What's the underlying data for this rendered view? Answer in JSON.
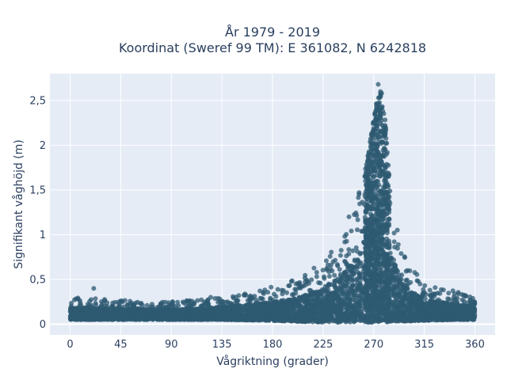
{
  "chart_data": {
    "type": "scatter",
    "title_line1": "År 1979 - 2019",
    "title_line2": "Koordinat (Sweref 99 TM): E 361082, N 6242818",
    "xlabel": "Vågriktning (grader)",
    "ylabel": "Signifikant våghöjd (m)",
    "xlim": [
      -18,
      378
    ],
    "ylim": [
      -0.12,
      2.8
    ],
    "x_ticks": [
      0,
      45,
      90,
      135,
      180,
      225,
      270,
      315,
      360
    ],
    "x_tick_labels": [
      "0",
      "45",
      "90",
      "135",
      "180",
      "225",
      "270",
      "315",
      "360"
    ],
    "y_ticks": [
      0,
      0.5,
      1,
      1.5,
      2,
      2.5
    ],
    "y_tick_labels": [
      "0",
      "0,5",
      "1",
      "1,5",
      "2",
      "2,5"
    ],
    "grid": true,
    "marker_color": "#2e5a71",
    "background_color": "#e5ecf6",
    "series": [
      {
        "envelope_x": [
          0,
          45,
          90,
          135,
          180,
          200,
          225,
          240,
          255,
          265,
          272,
          276,
          280,
          285,
          295,
          315,
          340,
          360
        ],
        "envelope_upper_y": [
          0.3,
          0.27,
          0.25,
          0.3,
          0.42,
          0.5,
          0.7,
          0.95,
          1.35,
          1.9,
          2.45,
          2.7,
          2.3,
          1.5,
          0.8,
          0.45,
          0.38,
          0.3
        ],
        "envelope_lower_y": [
          0.05,
          0.05,
          0.05,
          0.05,
          0.04,
          0.03,
          0.02,
          0.02,
          0.02,
          0.02,
          0.02,
          0.02,
          0.02,
          0.03,
          0.03,
          0.04,
          0.05,
          0.05
        ],
        "highlight_points": [
          {
            "x": 21,
            "y": 0.4
          },
          {
            "x": 257,
            "y": 1.47
          },
          {
            "x": 263,
            "y": 1.48
          },
          {
            "x": 268,
            "y": 1.95
          },
          {
            "x": 269,
            "y": 1.72
          },
          {
            "x": 271,
            "y": 2.35
          },
          {
            "x": 274,
            "y": 2.68
          },
          {
            "x": 276,
            "y": 2.6
          },
          {
            "x": 248,
            "y": 1.2
          },
          {
            "x": 283,
            "y": 1.67
          },
          {
            "x": 300,
            "y": 0.6
          },
          {
            "x": 320,
            "y": 0.38
          },
          {
            "x": 150,
            "y": 0.32
          },
          {
            "x": 125,
            "y": 0.3
          }
        ]
      }
    ]
  }
}
